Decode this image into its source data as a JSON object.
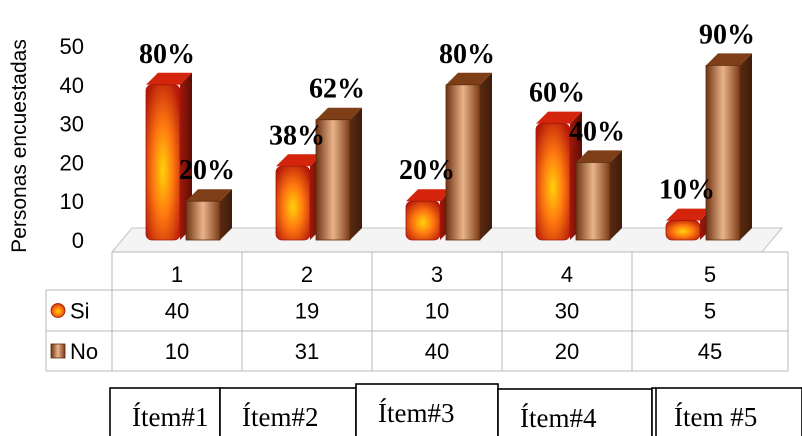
{
  "chart_data": {
    "type": "bar",
    "ylabel": "Personas encuestadas",
    "ylim": [
      0,
      50
    ],
    "yticks": [
      0,
      10,
      20,
      30,
      40,
      50
    ],
    "categories": [
      "1",
      "2",
      "3",
      "4",
      "5"
    ],
    "series": [
      {
        "name": "Si",
        "values": [
          40,
          19,
          10,
          30,
          5
        ],
        "percent_labels": [
          "80%",
          "38%",
          "20%",
          "60%",
          "10%"
        ],
        "color": "#e23a10"
      },
      {
        "name": "No",
        "values": [
          10,
          31,
          40,
          20,
          45
        ],
        "percent_labels": [
          "20%",
          "62%",
          "80%",
          "40%",
          "90%"
        ],
        "color": "#9a5228"
      }
    ],
    "grid": false,
    "data_table": true,
    "chart_style": "3d-cylinder-columns",
    "item_labels": [
      "Ítem#1",
      "Ítem#2",
      "Ítem#3",
      "Ítem#4",
      "Ítem #5"
    ]
  }
}
